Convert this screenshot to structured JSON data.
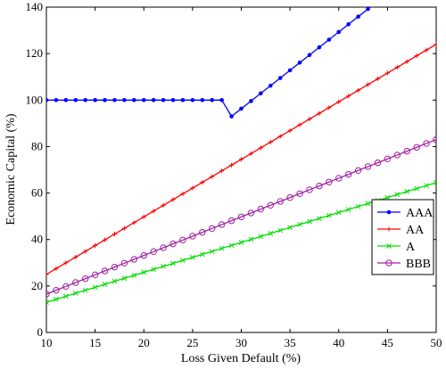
{
  "chart_data": {
    "type": "line",
    "xlabel": "Loss Given Default (%)",
    "ylabel": "Economic Capital (%)",
    "xlim": [
      10,
      50
    ],
    "ylim": [
      0,
      140
    ],
    "xticks": [
      10,
      15,
      20,
      25,
      30,
      35,
      40,
      45,
      50
    ],
    "yticks": [
      0,
      20,
      40,
      60,
      80,
      100,
      120,
      140
    ],
    "grid": false,
    "legend_position": "right",
    "series": [
      {
        "name": "AAA",
        "color": "#0000ff",
        "marker": "dot",
        "x": [
          10,
          11,
          12,
          13,
          14,
          15,
          16,
          17,
          18,
          19,
          20,
          21,
          22,
          23,
          24,
          25,
          26,
          27,
          28,
          29,
          30,
          31,
          32,
          33,
          34,
          35,
          36,
          37,
          38,
          39,
          40,
          41,
          42,
          43,
          44
        ],
        "y": [
          100,
          100,
          100,
          100,
          100,
          100,
          100,
          100,
          100,
          100,
          100,
          100,
          100,
          100,
          100,
          100,
          100,
          100,
          100,
          93,
          96.3,
          99.6,
          102.9,
          106.2,
          109.5,
          112.8,
          116.1,
          119.4,
          122.7,
          126,
          129.3,
          132.6,
          135.9,
          139.2,
          142.5
        ]
      },
      {
        "name": "AA",
        "color": "#ff0000",
        "marker": "plus",
        "x_start": 10,
        "x_end": 50,
        "x_step": 1,
        "y_start": 25,
        "y_end": 124
      },
      {
        "name": "A",
        "color": "#00dd00",
        "marker": "x",
        "x_start": 10,
        "x_end": 50,
        "x_step": 1,
        "y_start": 13,
        "y_end": 64.5
      },
      {
        "name": "BBB",
        "color": "#a020a0",
        "marker": "circle",
        "x_start": 10,
        "x_end": 50,
        "x_step": 1,
        "y_start": 16.5,
        "y_end": 83
      }
    ]
  }
}
